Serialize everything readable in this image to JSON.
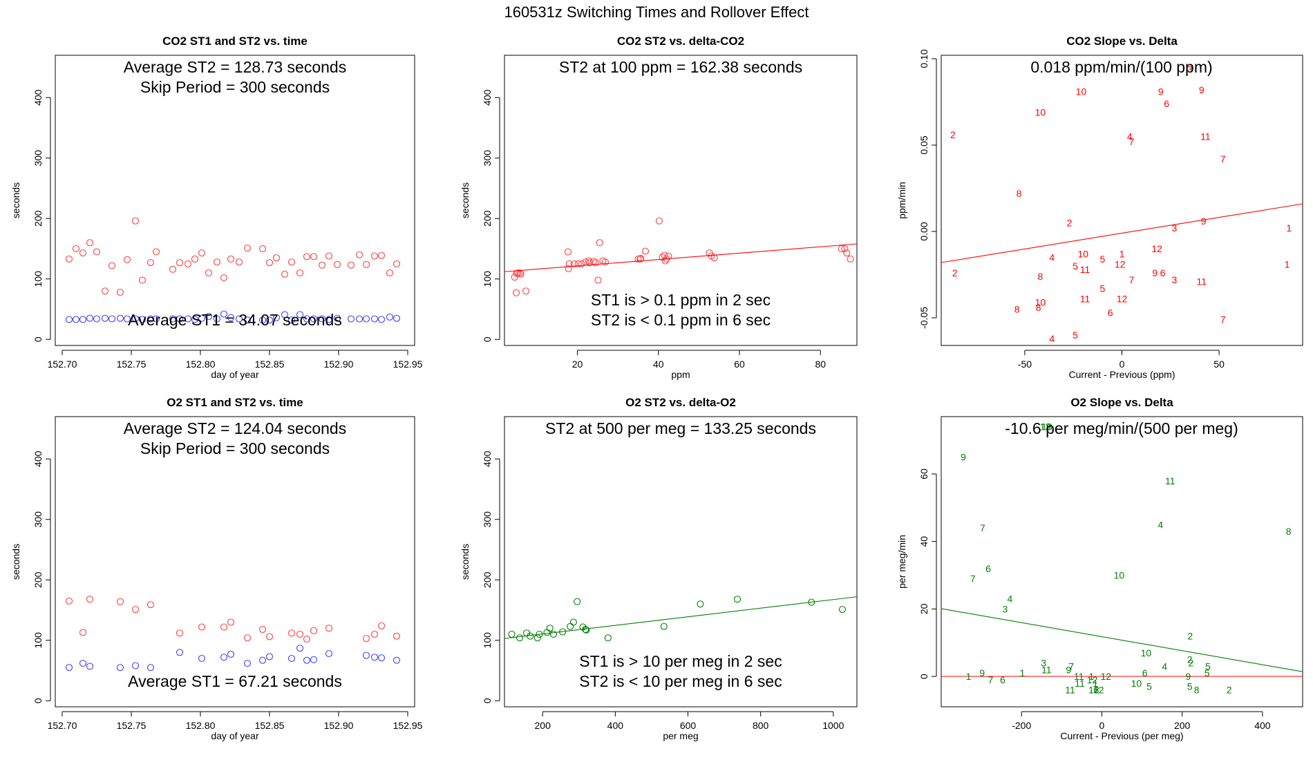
{
  "title": "160531z   Switching Times and Rollover Effect",
  "colors": {
    "st2": "#ff4040",
    "st1": "#4040ff",
    "co2": "#ff0000",
    "o2": "#008000",
    "zero_line": "#ff0000"
  },
  "chart_data": [
    {
      "id": "co2-time",
      "type": "scatter",
      "title": "CO2 ST1 and ST2 vs. time",
      "xlabel": "day of year",
      "ylabel": "seconds",
      "xlim": [
        152.695,
        152.955
      ],
      "ylim": [
        -10,
        470
      ],
      "xticks": [
        152.7,
        152.75,
        152.8,
        152.85,
        152.9,
        152.95
      ],
      "xtick_labels": [
        "152.70",
        "152.75",
        "152.80",
        "152.85",
        "152.90",
        "152.95"
      ],
      "yticks": [
        0,
        100,
        200,
        300,
        400
      ],
      "annotations": [
        "Average ST2 =  128.73  seconds",
        "Skip Period =  300  seconds",
        "Average ST1 =  34.07  seconds"
      ],
      "series": [
        {
          "marker": "circle",
          "color": "#ff4040",
          "x": [
            152.705,
            152.71,
            152.715,
            152.72,
            152.725,
            152.731,
            152.736,
            152.742,
            152.747,
            152.753,
            152.758,
            152.764,
            152.768,
            152.78,
            152.785,
            152.791,
            152.796,
            152.801,
            152.806,
            152.812,
            152.817,
            152.822,
            152.828,
            152.834,
            152.845,
            152.85,
            152.855,
            152.861,
            152.866,
            152.872,
            152.877,
            152.882,
            152.888,
            152.893,
            152.899,
            152.909,
            152.915,
            152.92,
            152.926,
            152.931,
            152.937,
            152.942
          ],
          "y": [
            133,
            150,
            143,
            160,
            145,
            80,
            122,
            78,
            132,
            196,
            98,
            127,
            145,
            116,
            127,
            125,
            133,
            143,
            110,
            128,
            102,
            133,
            128,
            151,
            150,
            127,
            135,
            108,
            128,
            110,
            137,
            137,
            123,
            138,
            124,
            123,
            140,
            124,
            138,
            139,
            110,
            125
          ]
        },
        {
          "marker": "circle",
          "color": "#4040ff",
          "x": [
            152.705,
            152.71,
            152.715,
            152.72,
            152.725,
            152.731,
            152.736,
            152.742,
            152.747,
            152.753,
            152.758,
            152.764,
            152.768,
            152.78,
            152.785,
            152.791,
            152.796,
            152.801,
            152.806,
            152.812,
            152.817,
            152.822,
            152.828,
            152.834,
            152.845,
            152.85,
            152.855,
            152.861,
            152.866,
            152.872,
            152.877,
            152.882,
            152.888,
            152.893,
            152.899,
            152.909,
            152.915,
            152.92,
            152.926,
            152.931,
            152.937,
            152.942
          ],
          "y": [
            33,
            33,
            33,
            35,
            34,
            35,
            34,
            35,
            34,
            34,
            33,
            34,
            34,
            34,
            34,
            34,
            33,
            35,
            38,
            34,
            42,
            36,
            34,
            32,
            32,
            32,
            36,
            41,
            32,
            41,
            34,
            34,
            34,
            33,
            35,
            34,
            34,
            34,
            34,
            33,
            37,
            35
          ]
        }
      ]
    },
    {
      "id": "co2-delta",
      "type": "scatter",
      "title": "CO2 ST2 vs. delta-CO2",
      "xlabel": "ppm",
      "ylabel": "seconds",
      "xlim": [
        2,
        89
      ],
      "ylim": [
        -10,
        470
      ],
      "xticks": [
        20,
        40,
        60,
        80
      ],
      "xtick_labels": [
        "20",
        "40",
        "60",
        "80"
      ],
      "yticks": [
        0,
        100,
        200,
        300,
        400
      ],
      "annotations": [
        "ST2 at 100 ppm =  162.38  seconds",
        "ST1 is > 0.1 ppm in 2 sec",
        "ST2 is < 0.1 ppm in 6 sec"
      ],
      "fit_line": {
        "x": [
          2,
          89
        ],
        "y": [
          112,
          158
        ],
        "color": "#ff0000"
      },
      "series": [
        {
          "marker": "circle",
          "color": "#ff4040",
          "x": [
            4.5,
            5.0,
            5.3,
            5.8,
            6.0,
            4.9,
            7.3,
            17.7,
            18.0,
            19.2,
            20.2,
            21.0,
            22.0,
            23.0,
            24.0,
            25.1,
            25.5,
            26.3,
            26.9,
            35.0,
            35.6,
            36.8,
            40.2,
            41.0,
            41.5,
            42.0,
            42.5,
            41.7,
            52.6,
            53.1,
            53.8,
            85.2,
            86.0,
            86.5,
            87.4,
            35.5,
            24.5,
            22.8,
            17.8
          ],
          "y": [
            103,
            109,
            110,
            110,
            108,
            77,
            80,
            145,
            125,
            125,
            125,
            125,
            128,
            127,
            129,
            98,
            160,
            130,
            128,
            133,
            134,
            146,
            196,
            136,
            139,
            133,
            138,
            130,
            143,
            138,
            135,
            150,
            150,
            143,
            133,
            133,
            127,
            130,
            117
          ]
        }
      ]
    },
    {
      "id": "co2-slope",
      "type": "scatter",
      "title": "CO2 Slope vs. Delta",
      "xlabel": "Current - Previous (ppm)",
      "ylabel": "ppm/min",
      "xlim": [
        -93,
        93
      ],
      "ylim": [
        -0.066,
        0.102
      ],
      "xticks": [
        -50,
        0,
        50
      ],
      "xtick_labels": [
        "-50",
        "0",
        "50"
      ],
      "yticks": [
        -0.05,
        0.0,
        0.05,
        0.1
      ],
      "ytick_labels": [
        "-0.05",
        "0.00",
        "0.05",
        "0.10"
      ],
      "annotations": [
        "0.018  ppm/min/(100 ppm)"
      ],
      "fit_line": {
        "x": [
          -93,
          93
        ],
        "y": [
          -0.018,
          0.016
        ],
        "color": "#ff0000"
      },
      "series": [
        {
          "marker": "label",
          "color": "#ff0000",
          "labels": [
            "3",
            "9",
            "10",
            "9",
            "6",
            "10",
            "2",
            "4",
            "7",
            "11",
            "7",
            "8",
            "2",
            "3",
            "9",
            "1",
            "1",
            "2",
            "4",
            "10",
            "5",
            "11",
            "1",
            "5",
            "12",
            "12",
            "8",
            "9",
            "6",
            "3",
            "11",
            "7",
            "10",
            "8",
            "8",
            "11",
            "5",
            "12",
            "6",
            "4",
            "5",
            "7"
          ],
          "x": [
            35,
            41,
            -21,
            20,
            23,
            -42,
            -87,
            4,
            5,
            43,
            52,
            -53,
            -27,
            27,
            42,
            86,
            85,
            -86,
            -36,
            -20,
            -24,
            -19,
            0,
            -10,
            -1,
            18,
            -42,
            17,
            21,
            27,
            41,
            5,
            -42,
            -54,
            -43,
            -19,
            -10,
            0,
            -6,
            -36,
            -24,
            52
          ],
          "y": [
            0.094,
            0.082,
            0.081,
            0.081,
            0.074,
            0.069,
            0.056,
            0.055,
            0.052,
            0.055,
            0.042,
            0.022,
            0.005,
            0.002,
            0.006,
            0.002,
            -0.019,
            -0.024,
            -0.015,
            -0.013,
            -0.02,
            -0.022,
            -0.013,
            -0.016,
            -0.019,
            -0.01,
            -0.026,
            -0.024,
            -0.024,
            -0.028,
            -0.029,
            -0.028,
            -0.041,
            -0.045,
            -0.044,
            -0.039,
            -0.033,
            -0.039,
            -0.047,
            -0.062,
            -0.06,
            -0.051
          ]
        }
      ]
    },
    {
      "id": "o2-time",
      "type": "scatter",
      "title": "O2 ST1 and ST2 vs. time",
      "xlabel": "day of year",
      "ylabel": "seconds",
      "xlim": [
        152.695,
        152.955
      ],
      "ylim": [
        -10,
        470
      ],
      "xticks": [
        152.7,
        152.75,
        152.8,
        152.85,
        152.9,
        152.95
      ],
      "xtick_labels": [
        "152.70",
        "152.75",
        "152.80",
        "152.85",
        "152.90",
        "152.95"
      ],
      "yticks": [
        0,
        100,
        200,
        300,
        400
      ],
      "annotations": [
        "Average ST2 =  124.04  seconds",
        "Skip Period =  300  seconds",
        "Average ST1 =  67.21  seconds"
      ],
      "series": [
        {
          "marker": "circle",
          "color": "#ff4040",
          "x": [
            152.705,
            152.715,
            152.72,
            152.742,
            152.753,
            152.764,
            152.785,
            152.801,
            152.817,
            152.822,
            152.834,
            152.845,
            152.85,
            152.866,
            152.872,
            152.877,
            152.882,
            152.893,
            152.92,
            152.926,
            152.931,
            152.942
          ],
          "y": [
            165,
            113,
            168,
            164,
            151,
            159,
            112,
            122,
            122,
            130,
            104,
            118,
            106,
            112,
            110,
            102,
            116,
            120,
            103,
            110,
            124,
            107
          ]
        },
        {
          "marker": "circle",
          "color": "#4040ff",
          "x": [
            152.705,
            152.715,
            152.72,
            152.742,
            152.753,
            152.764,
            152.785,
            152.801,
            152.817,
            152.822,
            152.834,
            152.845,
            152.85,
            152.866,
            152.872,
            152.877,
            152.882,
            152.893,
            152.92,
            152.926,
            152.931,
            152.942
          ],
          "y": [
            55,
            62,
            57,
            55,
            58,
            55,
            80,
            70,
            72,
            77,
            62,
            67,
            73,
            70,
            87,
            67,
            68,
            78,
            75,
            72,
            71,
            67
          ]
        }
      ]
    },
    {
      "id": "o2-delta",
      "type": "scatter",
      "title": "O2 ST2 vs. delta-O2",
      "xlabel": "per meg",
      "ylabel": "seconds",
      "xlim": [
        95,
        1065
      ],
      "ylim": [
        -10,
        470
      ],
      "xticks": [
        200,
        400,
        600,
        800,
        1000
      ],
      "xtick_labels": [
        "200",
        "400",
        "600",
        "800",
        "1000"
      ],
      "yticks": [
        0,
        100,
        200,
        300,
        400
      ],
      "annotations": [
        "ST2 at 500 per meg =  133.25  seconds",
        "ST1 is > 10 per meg in 2 sec",
        "ST2 is < 10 per meg in 6 sec"
      ],
      "fit_line": {
        "x": [
          95,
          1065
        ],
        "y": [
          103,
          172
        ],
        "color": "#008000"
      },
      "series": [
        {
          "marker": "circle",
          "color": "#008000",
          "x": [
            115,
            137,
            156,
            166,
            186,
            191,
            212,
            220,
            230,
            255,
            276,
            285,
            295,
            311,
            318,
            320,
            380,
            534,
            634,
            736,
            940,
            1025
          ],
          "y": [
            110,
            104,
            112,
            107,
            104,
            110,
            113,
            120,
            110,
            114,
            123,
            130,
            164,
            122,
            118,
            117,
            104,
            123,
            160,
            168,
            163,
            151
          ]
        }
      ]
    },
    {
      "id": "o2-slope",
      "type": "scatter",
      "title": "O2 Slope vs. Delta",
      "xlabel": "Current - Previous (per meg)",
      "ylabel": "per meg/min",
      "xlim": [
        -400,
        500
      ],
      "ylim": [
        -9,
        77
      ],
      "xticks": [
        -200,
        0,
        200,
        400
      ],
      "xtick_labels": [
        "-200",
        "0",
        "200",
        "400"
      ],
      "yticks": [
        0,
        20,
        40,
        60
      ],
      "annotations": [
        "-10.6  per meg/min/(500 per meg)"
      ],
      "fit_line": {
        "x": [
          -400,
          500
        ],
        "y": [
          20.1,
          1.4
        ],
        "color": "#008000"
      },
      "zero_line": {
        "y": 0,
        "color": "#ff0000"
      },
      "series": [
        {
          "marker": "label",
          "color": "#008000",
          "labels": [
            "13",
            "13",
            "9",
            "11",
            "7",
            "4",
            "8",
            "6",
            "7",
            "10",
            "4",
            "3",
            "2",
            "10",
            "3",
            "2",
            "7",
            "9",
            "11",
            "1",
            "1",
            "6",
            "7",
            "9",
            "11",
            "5",
            "5",
            "4",
            "6",
            "1",
            "11",
            "2",
            "12",
            "10",
            "9",
            "12",
            "6",
            "12",
            "1",
            "12",
            "5",
            "8",
            "2",
            "5",
            "11"
          ],
          "x": [
            -141,
            -137,
            -345,
            170,
            -297,
            146,
            465,
            -283,
            -321,
            43,
            -229,
            -241,
            220,
            110,
            -145,
            219,
            -76,
            -298,
            -138,
            -332,
            -198,
            -247,
            -277,
            -83,
            -57,
            264,
            262,
            156,
            107,
            -26,
            -55,
            317,
            -24,
            86,
            215,
            -8,
            -14,
            -20,
            -16,
            10,
            118,
            236,
            222,
            219,
            -79
          ],
          "y": [
            74,
            74,
            65,
            58,
            44,
            45,
            43,
            32,
            29,
            30,
            23,
            20,
            12,
            7,
            4,
            5,
            3,
            1,
            2,
            0,
            1,
            -1,
            -1,
            2,
            0,
            3,
            1,
            3,
            1,
            0,
            -2,
            -4,
            -1,
            -2,
            0,
            -4,
            -4,
            -4,
            -2,
            0,
            -3,
            -4,
            4,
            -3,
            -4
          ]
        }
      ]
    }
  ]
}
